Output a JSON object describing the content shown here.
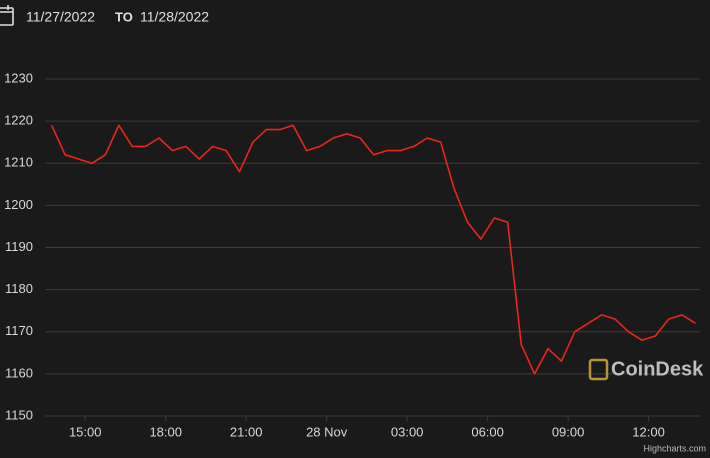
{
  "chart_data": {
    "type": "line",
    "date_from": "11/27/2022",
    "date_separator": "TO",
    "date_to": "11/28/2022",
    "watermark": "CoinDesk",
    "credits": "Highcharts.com",
    "grid": true,
    "xlim": [
      "2022-11-27T13:30",
      "2022-11-28T13:55"
    ],
    "xticks": [
      {
        "value": "2022-11-27T15:00",
        "label": "15:00"
      },
      {
        "value": "2022-11-27T18:00",
        "label": "18:00"
      },
      {
        "value": "2022-11-27T21:00",
        "label": "21:00"
      },
      {
        "value": "2022-11-28T00:00",
        "label": "28 Nov"
      },
      {
        "value": "2022-11-28T03:00",
        "label": "03:00"
      },
      {
        "value": "2022-11-28T06:00",
        "label": "06:00"
      },
      {
        "value": "2022-11-28T09:00",
        "label": "09:00"
      },
      {
        "value": "2022-11-28T12:00",
        "label": "12:00"
      }
    ],
    "ylim": [
      1150,
      1230
    ],
    "yticks": [
      1150,
      1160,
      1170,
      1180,
      1190,
      1200,
      1210,
      1220,
      1230
    ],
    "x": [
      "2022-11-27T13:45",
      "2022-11-27T14:15",
      "2022-11-27T14:45",
      "2022-11-27T15:15",
      "2022-11-27T15:45",
      "2022-11-27T16:15",
      "2022-11-27T16:45",
      "2022-11-27T17:15",
      "2022-11-27T17:45",
      "2022-11-27T18:15",
      "2022-11-27T18:45",
      "2022-11-27T19:15",
      "2022-11-27T19:45",
      "2022-11-27T20:15",
      "2022-11-27T20:45",
      "2022-11-27T21:15",
      "2022-11-27T21:45",
      "2022-11-27T22:15",
      "2022-11-27T22:45",
      "2022-11-27T23:15",
      "2022-11-27T23:45",
      "2022-11-28T00:15",
      "2022-11-28T00:45",
      "2022-11-28T01:15",
      "2022-11-28T01:45",
      "2022-11-28T02:15",
      "2022-11-28T02:45",
      "2022-11-28T03:15",
      "2022-11-28T03:45",
      "2022-11-28T04:15",
      "2022-11-28T04:45",
      "2022-11-28T05:15",
      "2022-11-28T05:45",
      "2022-11-28T06:15",
      "2022-11-28T06:45",
      "2022-11-28T07:15",
      "2022-11-28T07:45",
      "2022-11-28T08:15",
      "2022-11-28T08:45",
      "2022-11-28T09:15",
      "2022-11-28T09:45",
      "2022-11-28T10:15",
      "2022-11-28T10:45",
      "2022-11-28T11:15",
      "2022-11-28T11:45",
      "2022-11-28T12:15",
      "2022-11-28T12:45",
      "2022-11-28T13:15",
      "2022-11-28T13:45"
    ],
    "series": [
      {
        "color": "#e8261c",
        "values": [
          1219,
          1212,
          1211,
          1210,
          1212,
          1219,
          1214,
          1214,
          1216,
          1213,
          1214,
          1211,
          1214,
          1213,
          1208,
          1215,
          1218,
          1218,
          1219,
          1213,
          1214,
          1216,
          1217,
          1216,
          1212,
          1213,
          1213,
          1214,
          1216,
          1215,
          1204,
          1196,
          1192,
          1197,
          1196,
          1167,
          1160,
          1166,
          1163,
          1170,
          1172,
          1174,
          1173,
          1170,
          1168,
          1169,
          1173,
          1174,
          1172
        ]
      }
    ]
  }
}
